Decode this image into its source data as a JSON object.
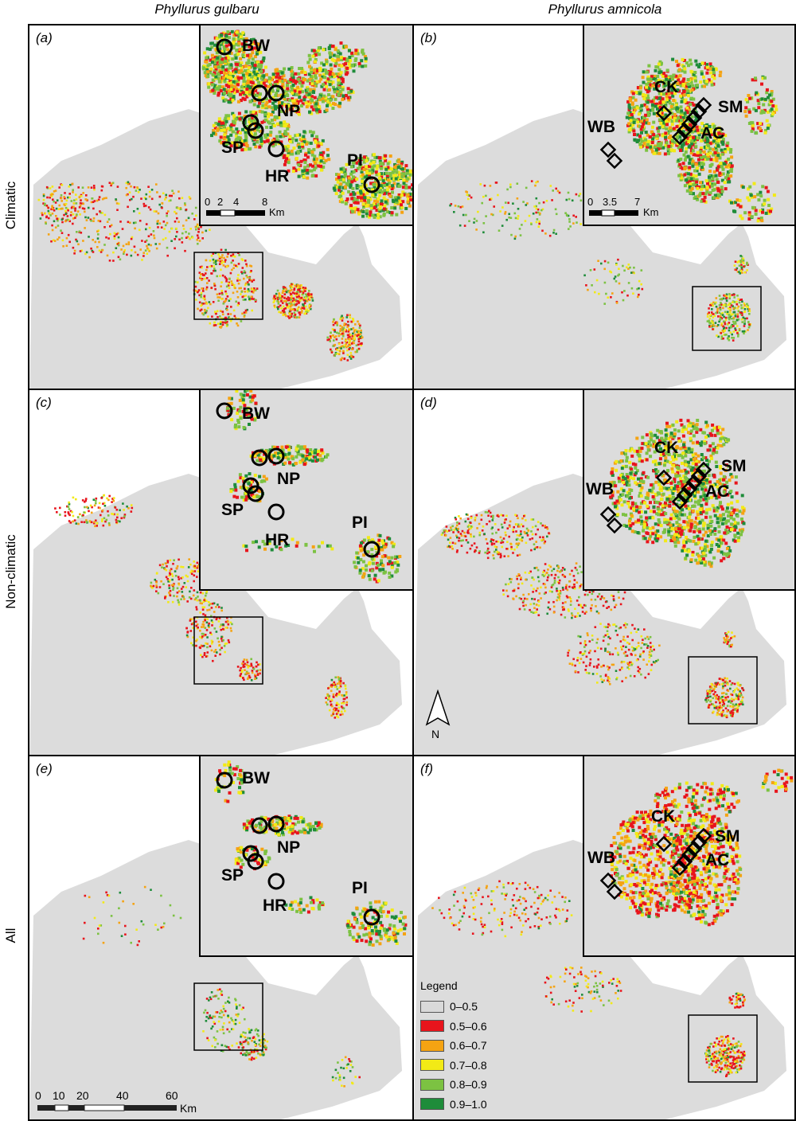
{
  "columns": [
    "Phyllurus gulbaru",
    "Phyllurus amnicola"
  ],
  "rows": [
    "Climatic",
    "Non-climatic",
    "All"
  ],
  "panels": [
    {
      "label": "(a)",
      "species": "gulbaru",
      "row": 0
    },
    {
      "label": "(b)",
      "species": "amnicola",
      "row": 0
    },
    {
      "label": "(c)",
      "species": "gulbaru",
      "row": 1
    },
    {
      "label": "(d)",
      "species": "amnicola",
      "row": 1
    },
    {
      "label": "(e)",
      "species": "gulbaru",
      "row": 2
    },
    {
      "label": "(f)",
      "species": "amnicola",
      "row": 2
    }
  ],
  "sites_gulbaru": [
    "BW",
    "NP",
    "SP",
    "HR",
    "PI"
  ],
  "sites_amnicola": [
    "CK",
    "SM",
    "AC",
    "WB"
  ],
  "inset_scale_a": {
    "ticks": [
      "0",
      "2",
      "4",
      "8"
    ],
    "unit": "Km"
  },
  "inset_scale_b": {
    "ticks": [
      "0",
      "3.5",
      "7"
    ],
    "unit": "Km"
  },
  "main_scale": {
    "ticks": [
      "0",
      "10",
      "20",
      "40",
      "60"
    ],
    "unit": "Km"
  },
  "north_label": "N",
  "legend": {
    "title": "Legend",
    "items": [
      {
        "label": "0–0.5",
        "color": "#d9d9d9"
      },
      {
        "label": "0.5–0.6",
        "color": "#e8141c"
      },
      {
        "label": "0.6–0.7",
        "color": "#f5a312"
      },
      {
        "label": "0.7–0.8",
        "color": "#f2ea16"
      },
      {
        "label": "0.8–0.9",
        "color": "#7cc242"
      },
      {
        "label": "0.9–1.0",
        "color": "#1e8c3a"
      }
    ]
  }
}
